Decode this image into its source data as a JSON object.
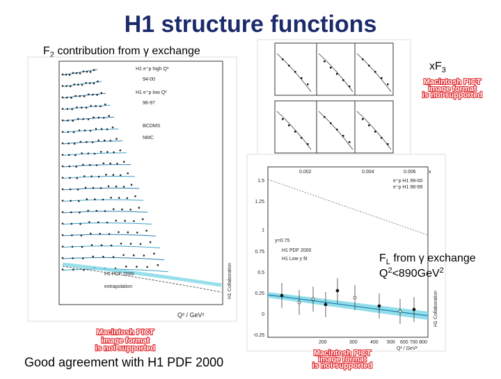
{
  "slide": {
    "title": "H1 structure functions",
    "f2_caption": {
      "main": "F",
      "sub": "2",
      "rest": " contribution from γ exchange"
    },
    "xf3_caption": {
      "main": "xF",
      "sub": "3"
    },
    "fl_caption": {
      "main": "F",
      "sub": "L",
      "rest": " from γ exchange"
    },
    "q2_caption": {
      "main": "Q",
      "sup1": "2",
      "mid": "<890GeV",
      "sup2": "2"
    },
    "footer": "Good agreement with H1 PDF 2000",
    "pict_notice": [
      "Macintosh PICT",
      "image format",
      "is not supported"
    ],
    "f2_plot": {
      "legend": [
        "H1 e⁺p high Q²",
        "94-00",
        "H1 e⁺p low Q²",
        "96-97",
        "BCDMS",
        "NMC"
      ],
      "curves": [
        "H1 PDF 2000",
        "extrapolation"
      ],
      "x_label": "Q² / GeV²",
      "collaboration": "H1 Collaboration"
    },
    "fl_plot": {
      "top_ticks": [
        "0.002",
        "0.004",
        "0.006",
        "x"
      ],
      "y_ticks": [
        "1.5",
        "1.25",
        "1",
        "0.75",
        "0.5",
        "0.25",
        "0",
        "-0.25"
      ],
      "x_ticks": [
        "200",
        "300",
        "400",
        "500",
        "600 700 800"
      ],
      "x_label": "Q² / GeV²",
      "legend": [
        "e⁺p H1 99-00",
        "e⁺p H1 98-99"
      ],
      "y_note": "y=0.75",
      "curves": [
        "H1 PDF 2000",
        "H1 Low y fit"
      ],
      "collaboration": "H1 Collaboration"
    }
  }
}
